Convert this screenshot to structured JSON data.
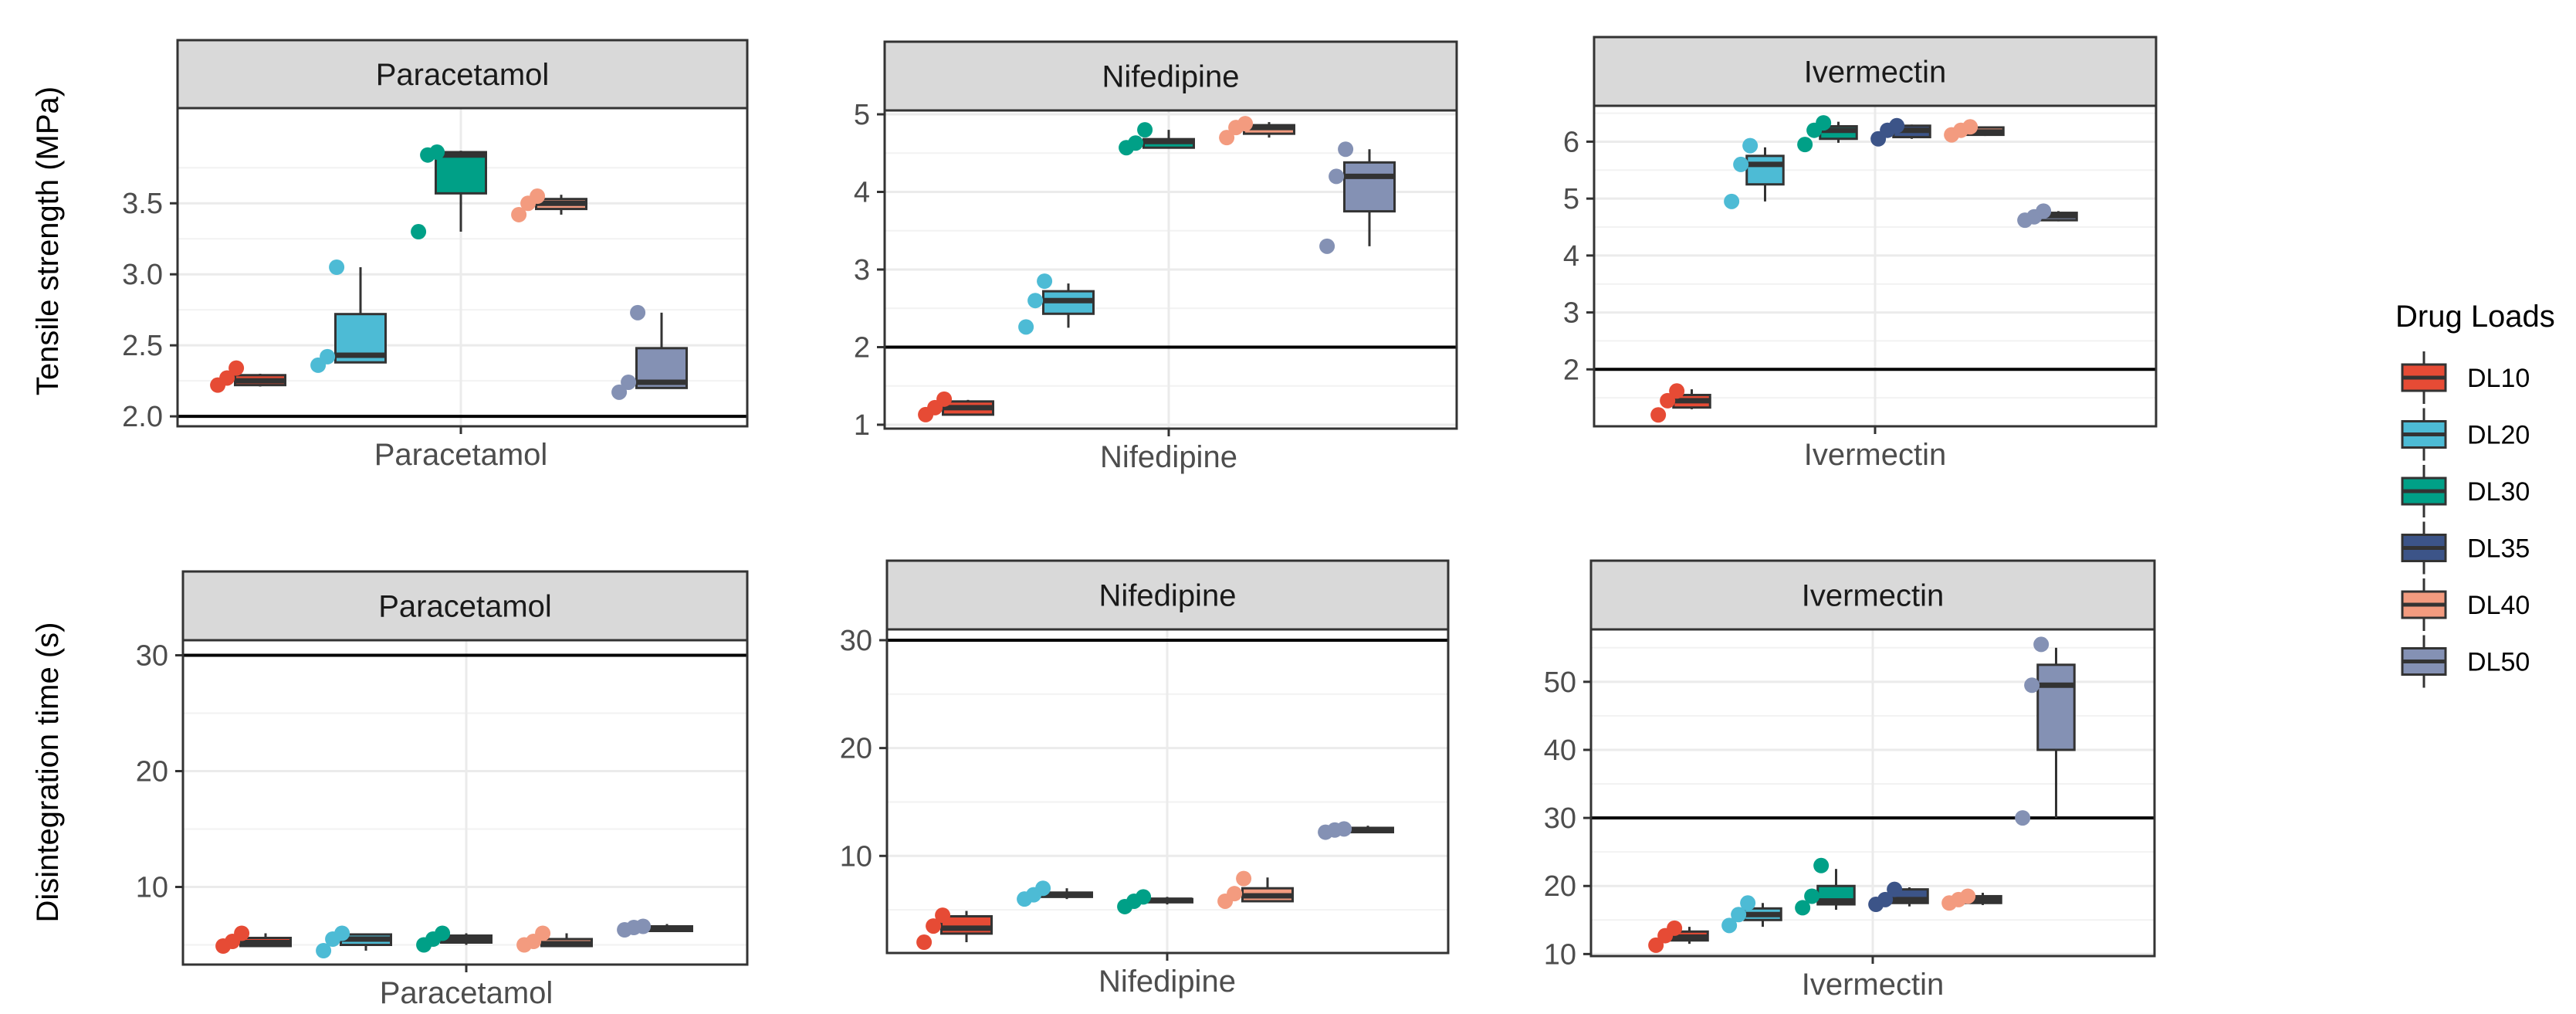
{
  "figure": {
    "row_labels": [
      "Tensile strength (MPa)",
      "Disintegration time (s)"
    ]
  },
  "legend": {
    "title": "Drug Loads",
    "items": [
      {
        "label": "DL10",
        "color": "#E64B35"
      },
      {
        "label": "DL20",
        "color": "#4DBBD5"
      },
      {
        "label": "DL30",
        "color": "#00A087"
      },
      {
        "label": "DL35",
        "color": "#3C5488"
      },
      {
        "label": "DL40",
        "color": "#F39B7F"
      },
      {
        "label": "DL50",
        "color": "#8491B4"
      }
    ]
  },
  "chart_data": [
    {
      "type": "box",
      "title": "Paracetamol",
      "xlabel": "Paracetamol",
      "ylabel": "Tensile strength (MPa)",
      "ylim": [
        1.93,
        4.17
      ],
      "yticks": [
        2.0,
        2.5,
        3.0,
        3.5
      ],
      "ytick_labels": [
        "2.0",
        "2.5",
        "3.0",
        "3.5"
      ],
      "reference_line": 2,
      "groups": [
        {
          "name": "DL10",
          "q1": 2.22,
          "median": 2.25,
          "q3": 2.29,
          "low": 2.21,
          "high": 2.3,
          "points": [
            2.22,
            2.27,
            2.34
          ]
        },
        {
          "name": "DL20",
          "q1": 2.38,
          "median": 2.43,
          "q3": 2.72,
          "low": 2.38,
          "high": 3.05,
          "points": [
            2.36,
            2.42,
            3.05
          ]
        },
        {
          "name": "DL30",
          "q1": 3.57,
          "median": 3.84,
          "q3": 3.86,
          "low": 3.3,
          "high": 3.87,
          "points": [
            3.3,
            3.84,
            3.86
          ]
        },
        {
          "name": "DL40",
          "q1": 3.46,
          "median": 3.5,
          "q3": 3.53,
          "low": 3.42,
          "high": 3.56,
          "points": [
            3.42,
            3.5,
            3.55
          ]
        },
        {
          "name": "DL50",
          "q1": 2.2,
          "median": 2.24,
          "q3": 2.48,
          "low": 2.2,
          "high": 2.73,
          "points": [
            2.17,
            2.24,
            2.73
          ]
        }
      ]
    },
    {
      "type": "box",
      "title": "Nifedipine",
      "xlabel": "Nifedipine",
      "ylabel": "",
      "ylim": [
        0.95,
        5.05
      ],
      "yticks": [
        1,
        2,
        3,
        4,
        5
      ],
      "ytick_labels": [
        "1",
        "2",
        "3",
        "4",
        "5"
      ],
      "reference_line": 2,
      "groups": [
        {
          "name": "DL10",
          "q1": 1.13,
          "median": 1.22,
          "q3": 1.3,
          "low": 1.12,
          "high": 1.32,
          "points": [
            1.13,
            1.22,
            1.33
          ]
        },
        {
          "name": "DL20",
          "q1": 2.43,
          "median": 2.6,
          "q3": 2.72,
          "low": 2.25,
          "high": 2.82,
          "points": [
            2.26,
            2.6,
            2.85
          ]
        },
        {
          "name": "DL30",
          "q1": 4.57,
          "median": 4.65,
          "q3": 4.68,
          "low": 4.57,
          "high": 4.8,
          "points": [
            4.57,
            4.63,
            4.8
          ]
        },
        {
          "name": "DL40",
          "q1": 4.75,
          "median": 4.83,
          "q3": 4.86,
          "low": 4.7,
          "high": 4.9,
          "points": [
            4.7,
            4.83,
            4.88
          ]
        },
        {
          "name": "DL50",
          "q1": 3.75,
          "median": 4.2,
          "q3": 4.38,
          "low": 3.3,
          "high": 4.55,
          "points": [
            3.3,
            4.2,
            4.55
          ]
        }
      ]
    },
    {
      "type": "box",
      "title": "Ivermectin",
      "xlabel": "Ivermectin",
      "ylabel": "",
      "ylim": [
        1.0,
        6.63
      ],
      "yticks": [
        2,
        3,
        4,
        5,
        6
      ],
      "ytick_labels": [
        "2",
        "3",
        "4",
        "5",
        "6"
      ],
      "reference_line": 2,
      "groups": [
        {
          "name": "DL10",
          "q1": 1.33,
          "median": 1.45,
          "q3": 1.55,
          "low": 1.3,
          "high": 1.65,
          "points": [
            1.2,
            1.45,
            1.62
          ]
        },
        {
          "name": "DL20",
          "q1": 5.25,
          "median": 5.6,
          "q3": 5.75,
          "low": 4.95,
          "high": 5.9,
          "points": [
            4.95,
            5.6,
            5.93
          ]
        },
        {
          "name": "DL30",
          "q1": 6.05,
          "median": 6.2,
          "q3": 6.27,
          "low": 5.98,
          "high": 6.35,
          "points": [
            5.95,
            6.2,
            6.33
          ]
        },
        {
          "name": "DL35",
          "q1": 6.08,
          "median": 6.2,
          "q3": 6.28,
          "low": 6.05,
          "high": 6.3,
          "points": [
            6.05,
            6.2,
            6.28
          ]
        },
        {
          "name": "DL40",
          "q1": 6.12,
          "median": 6.17,
          "q3": 6.25,
          "low": 6.1,
          "high": 6.27,
          "points": [
            6.12,
            6.2,
            6.26
          ]
        },
        {
          "name": "DL50",
          "q1": 4.62,
          "median": 4.7,
          "q3": 4.75,
          "low": 4.6,
          "high": 4.78,
          "points": [
            4.62,
            4.68,
            4.78
          ]
        }
      ]
    },
    {
      "type": "box",
      "title": "Paracetamol",
      "xlabel": "Paracetamol",
      "ylabel": "Disintegration time (s)",
      "ylim": [
        3.3,
        31.3
      ],
      "yticks": [
        10,
        20,
        30
      ],
      "ytick_labels": [
        "10",
        "20",
        "30"
      ],
      "reference_line": 30,
      "groups": [
        {
          "name": "DL10",
          "q1": 4.9,
          "median": 5.2,
          "q3": 5.6,
          "low": 4.8,
          "high": 6.0,
          "points": [
            4.9,
            5.3,
            6.0
          ]
        },
        {
          "name": "DL20",
          "q1": 5.0,
          "median": 5.5,
          "q3": 5.9,
          "low": 4.5,
          "high": 6.0,
          "points": [
            4.5,
            5.5,
            6.0
          ]
        },
        {
          "name": "DL30",
          "q1": 5.2,
          "median": 5.5,
          "q3": 5.8,
          "low": 5.0,
          "high": 6.0,
          "points": [
            5.0,
            5.5,
            6.0
          ]
        },
        {
          "name": "DL40",
          "q1": 4.9,
          "median": 5.1,
          "q3": 5.5,
          "low": 4.8,
          "high": 6.0,
          "points": [
            5.0,
            5.3,
            6.0
          ]
        },
        {
          "name": "DL50",
          "q1": 6.2,
          "median": 6.4,
          "q3": 6.6,
          "low": 6.1,
          "high": 6.8,
          "points": [
            6.3,
            6.5,
            6.6
          ]
        }
      ]
    },
    {
      "type": "box",
      "title": "Nifedipine",
      "xlabel": "Nifedipine",
      "ylabel": "",
      "ylim": [
        1.0,
        31.0
      ],
      "yticks": [
        10,
        20,
        30
      ],
      "ytick_labels": [
        "10",
        "20",
        "30"
      ],
      "reference_line": 30,
      "groups": [
        {
          "name": "DL10",
          "q1": 2.8,
          "median": 3.3,
          "q3": 4.4,
          "low": 2.0,
          "high": 4.9,
          "points": [
            2.0,
            3.5,
            4.5
          ]
        },
        {
          "name": "DL20",
          "q1": 6.2,
          "median": 6.4,
          "q3": 6.6,
          "low": 6.0,
          "high": 7.0,
          "points": [
            6.0,
            6.4,
            7.0
          ]
        },
        {
          "name": "DL30",
          "q1": 5.7,
          "median": 5.9,
          "q3": 6.0,
          "low": 5.5,
          "high": 6.2,
          "points": [
            5.3,
            5.8,
            6.2
          ]
        },
        {
          "name": "DL40",
          "q1": 5.8,
          "median": 6.3,
          "q3": 7.0,
          "low": 5.8,
          "high": 8.0,
          "points": [
            5.8,
            6.5,
            7.9
          ]
        },
        {
          "name": "DL50",
          "q1": 12.2,
          "median": 12.4,
          "q3": 12.6,
          "low": 12.1,
          "high": 12.8,
          "points": [
            12.2,
            12.4,
            12.5
          ]
        }
      ]
    },
    {
      "type": "box",
      "title": "Ivermectin",
      "xlabel": "Ivermectin",
      "ylabel": "",
      "ylim": [
        9.7,
        57.7
      ],
      "yticks": [
        10,
        20,
        30,
        40,
        50
      ],
      "ytick_labels": [
        "10",
        "20",
        "30",
        "40",
        "50"
      ],
      "reference_line": 30,
      "groups": [
        {
          "name": "DL10",
          "q1": 12.0,
          "median": 12.5,
          "q3": 13.3,
          "low": 11.5,
          "high": 14.0,
          "points": [
            11.3,
            12.7,
            13.8
          ]
        },
        {
          "name": "DL20",
          "q1": 15.0,
          "median": 15.8,
          "q3": 16.7,
          "low": 14.0,
          "high": 17.5,
          "points": [
            14.2,
            15.8,
            17.5
          ]
        },
        {
          "name": "DL30",
          "q1": 17.3,
          "median": 17.8,
          "q3": 20.0,
          "low": 16.5,
          "high": 22.5,
          "points": [
            16.8,
            18.5,
            23.0
          ]
        },
        {
          "name": "DL35",
          "q1": 17.5,
          "median": 18.0,
          "q3": 19.5,
          "low": 17.0,
          "high": 19.8,
          "points": [
            17.3,
            18.0,
            19.5
          ]
        },
        {
          "name": "DL40",
          "q1": 17.5,
          "median": 18.0,
          "q3": 18.5,
          "low": 17.2,
          "high": 19.0,
          "points": [
            17.5,
            18.0,
            18.5
          ]
        },
        {
          "name": "DL50",
          "q1": 40.0,
          "median": 49.5,
          "q3": 52.5,
          "low": 30.0,
          "high": 55.0,
          "points": [
            30.0,
            49.5,
            55.5
          ]
        }
      ]
    }
  ]
}
